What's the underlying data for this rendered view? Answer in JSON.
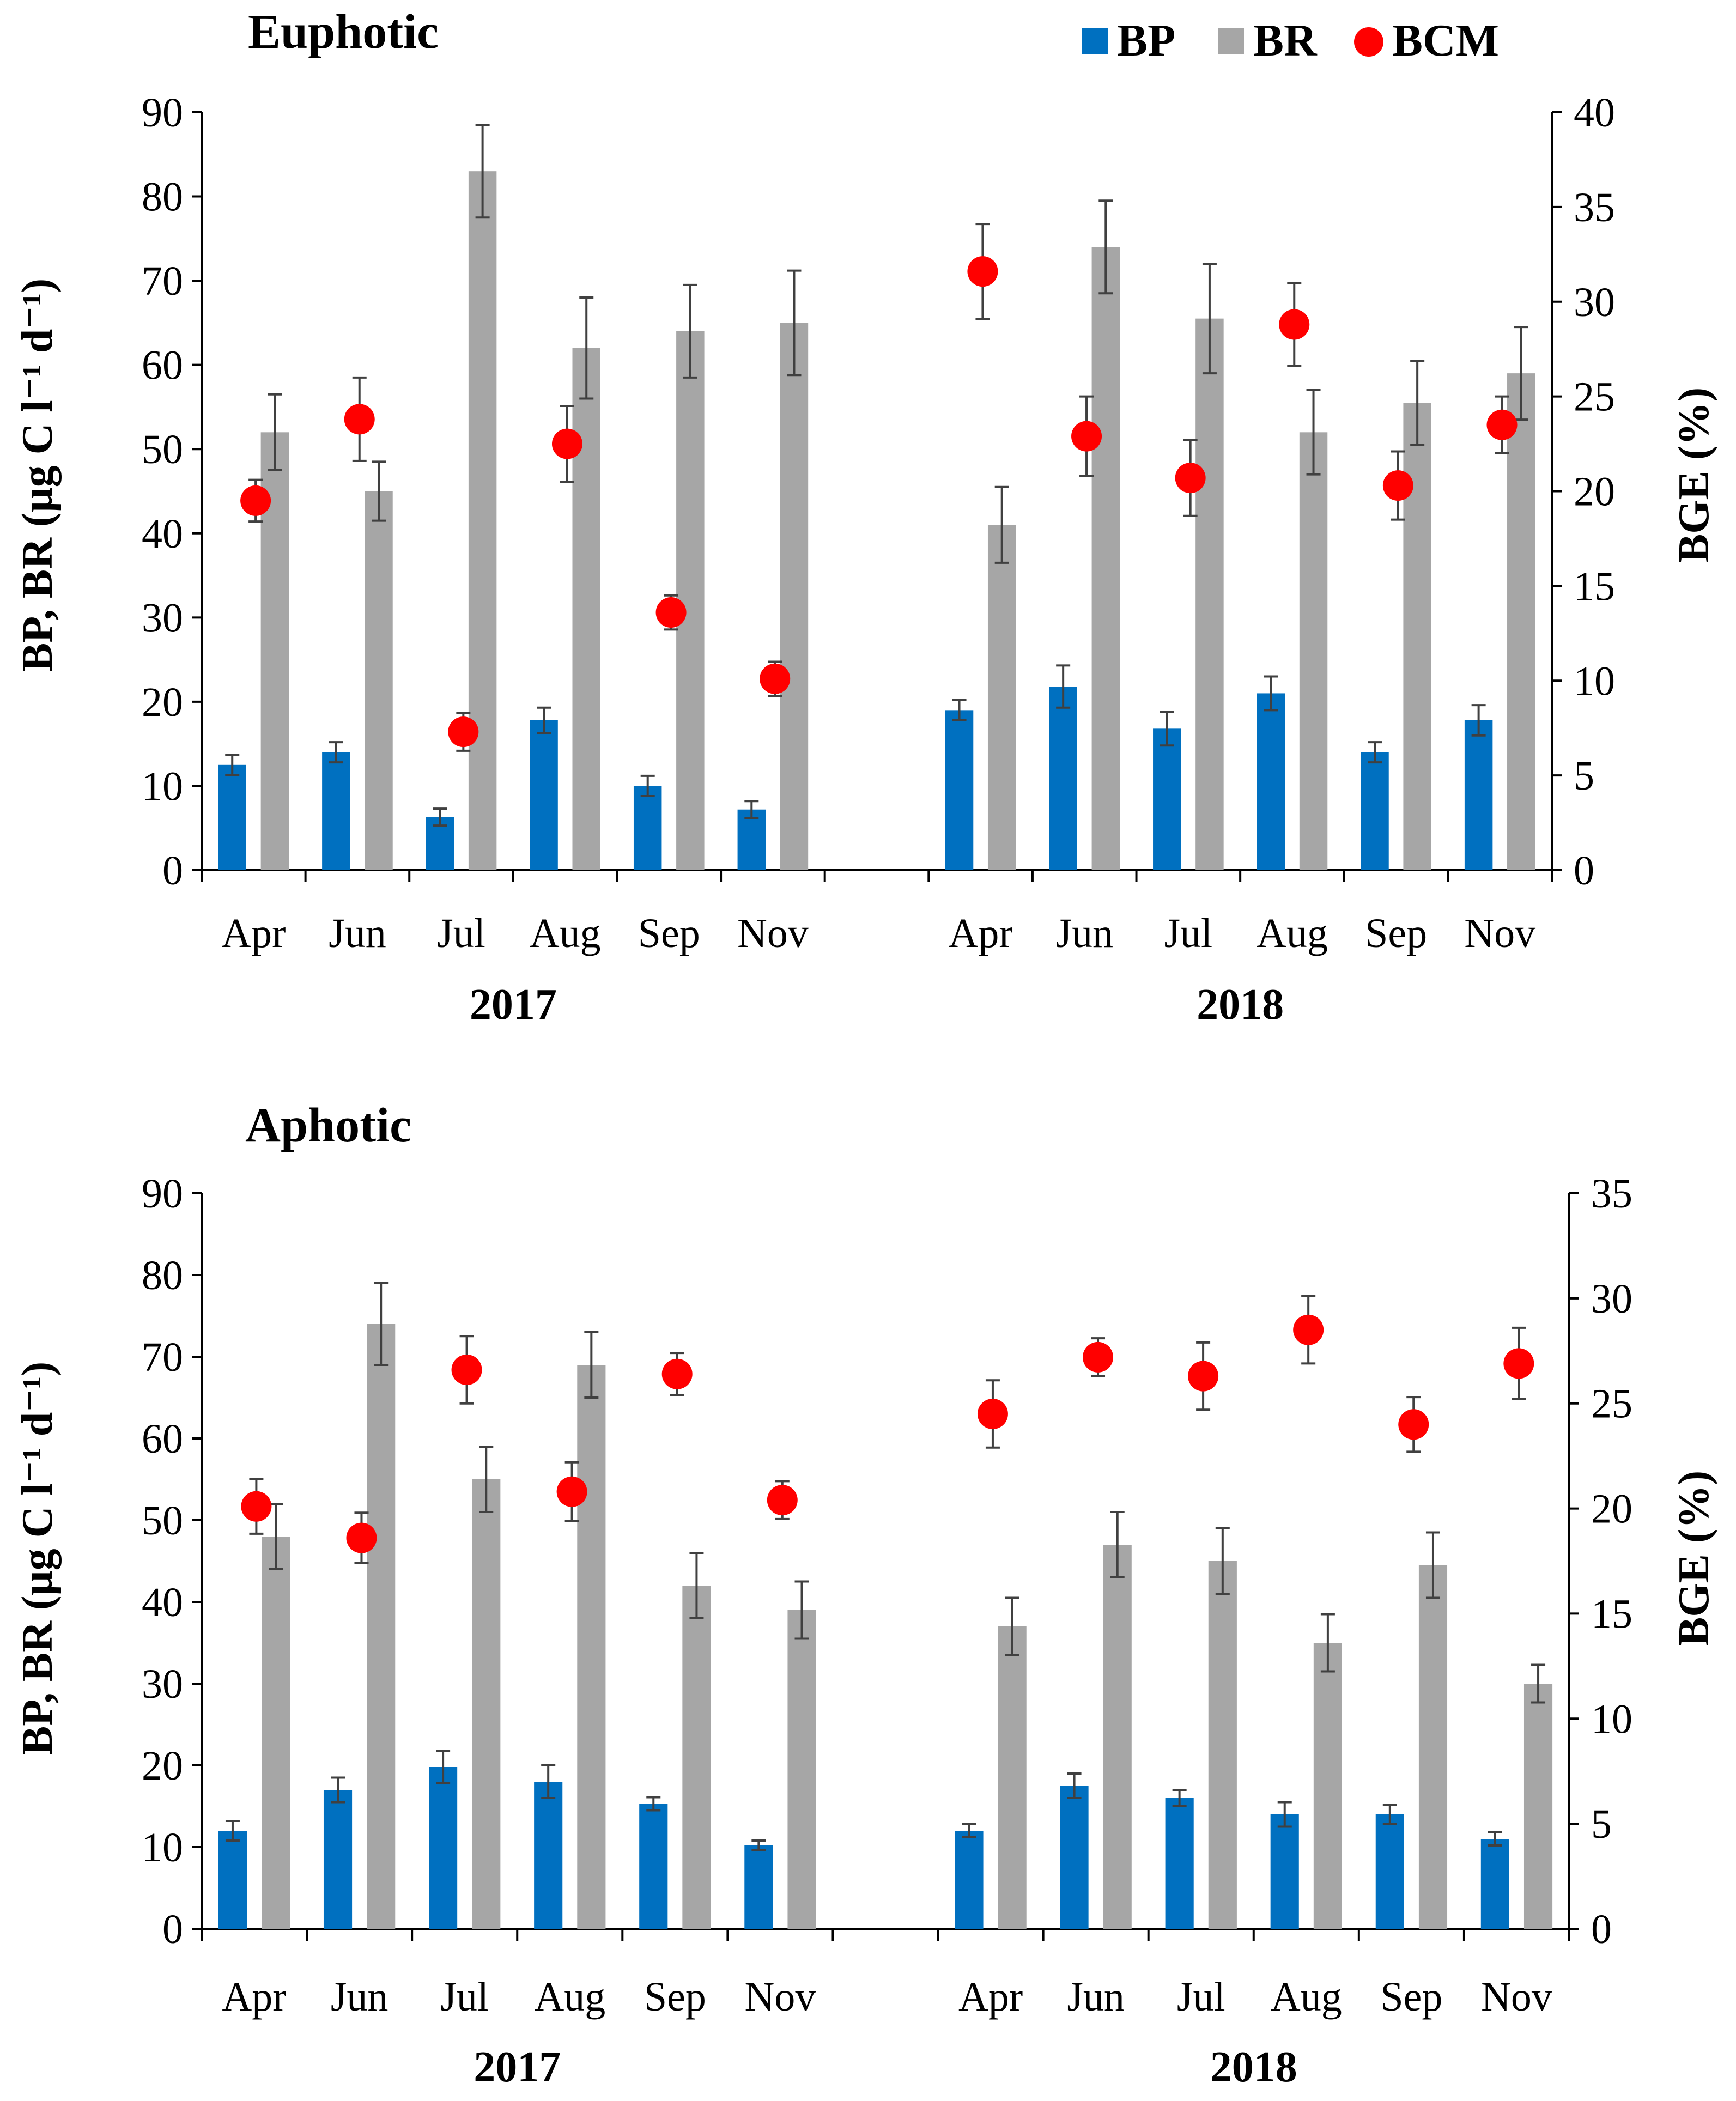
{
  "legend": [
    {
      "label": "BP",
      "color": "#0070C0",
      "marker": "square"
    },
    {
      "label": "BR",
      "color": "#A6A6A6",
      "marker": "square"
    },
    {
      "label": "BCM",
      "color": "#FF0000",
      "marker": "circle"
    }
  ],
  "chart_data": [
    {
      "type": "bar",
      "title": "Euphotic",
      "ylabel": "BP, BR (µg C l⁻¹ d⁻¹)",
      "y2label": "BGE (%)",
      "ylim": [
        0,
        90
      ],
      "yticks": [
        0,
        10,
        20,
        30,
        40,
        50,
        60,
        70,
        80,
        90
      ],
      "y2lim": [
        0,
        40
      ],
      "y2ticks": [
        0,
        5,
        10,
        15,
        20,
        25,
        30,
        35,
        40
      ],
      "groups": [
        {
          "label": "2017",
          "months": [
            "Apr",
            "Jun",
            "Jul",
            "Aug",
            "Sep",
            "Nov"
          ]
        },
        {
          "label": "2018",
          "months": [
            "Apr",
            "Jun",
            "Jul",
            "Aug",
            "Sep",
            "Nov"
          ]
        }
      ],
      "series": [
        {
          "name": "BP",
          "kind": "bar",
          "axis": "left",
          "values": [
            12.5,
            14,
            6.3,
            17.8,
            10,
            7.2,
            19,
            21.8,
            16.8,
            21,
            14,
            17.8
          ],
          "errors": [
            1.2,
            1.2,
            1.0,
            1.5,
            1.2,
            1.0,
            1.2,
            2.5,
            2.0,
            2.0,
            1.2,
            1.8
          ]
        },
        {
          "name": "BR",
          "kind": "bar",
          "axis": "left",
          "values": [
            52,
            45,
            83,
            62,
            64,
            65,
            41,
            74,
            65.5,
            52,
            55.5,
            59
          ],
          "errors": [
            4.5,
            3.5,
            5.5,
            6,
            5.5,
            6.2,
            4.5,
            5.5,
            6.5,
            5,
            5,
            5.5
          ]
        },
        {
          "name": "BCM",
          "kind": "point",
          "axis": "right",
          "values": [
            19.5,
            23.8,
            7.3,
            22.5,
            13.6,
            10.1,
            31.6,
            22.9,
            20.7,
            28.8,
            20.3,
            23.5
          ],
          "errors": [
            1.1,
            2.2,
            1.0,
            2.0,
            0.9,
            0.9,
            2.5,
            2.1,
            2.0,
            2.2,
            1.8,
            1.5
          ]
        }
      ]
    },
    {
      "type": "bar",
      "title": "Aphotic",
      "ylabel": "BP, BR (µg C l⁻¹ d⁻¹)",
      "y2label": "BGE (%)",
      "ylim": [
        0,
        90
      ],
      "yticks": [
        0,
        10,
        20,
        30,
        40,
        50,
        60,
        70,
        80,
        90
      ],
      "y2lim": [
        0,
        35
      ],
      "y2ticks": [
        0,
        5,
        10,
        15,
        20,
        25,
        30,
        35
      ],
      "groups": [
        {
          "label": "2017",
          "months": [
            "Apr",
            "Jun",
            "Jul",
            "Aug",
            "Sep",
            "Nov"
          ]
        },
        {
          "label": "2018",
          "months": [
            "Apr",
            "Jun",
            "Jul",
            "Aug",
            "Sep",
            "Nov"
          ]
        }
      ],
      "series": [
        {
          "name": "BP",
          "kind": "bar",
          "axis": "left",
          "values": [
            12,
            17,
            19.8,
            18,
            15.3,
            10.2,
            12,
            17.5,
            16,
            14,
            14,
            11
          ],
          "errors": [
            1.2,
            1.5,
            2.0,
            2.0,
            0.8,
            0.6,
            0.8,
            1.5,
            1.0,
            1.5,
            1.2,
            0.8
          ]
        },
        {
          "name": "BR",
          "kind": "bar",
          "axis": "left",
          "values": [
            48,
            74,
            55,
            69,
            42,
            39,
            37,
            47,
            45,
            35,
            44.5,
            30
          ],
          "errors": [
            4,
            5,
            4,
            4,
            4,
            3.5,
            3.5,
            4,
            4,
            3.5,
            4,
            2.3
          ]
        },
        {
          "name": "BCM",
          "kind": "point",
          "axis": "right",
          "values": [
            20.1,
            18.6,
            26.6,
            20.8,
            26.4,
            20.4,
            24.5,
            27.2,
            26.3,
            28.5,
            24.0,
            26.9
          ],
          "errors": [
            1.3,
            1.2,
            1.6,
            1.4,
            1.0,
            0.9,
            1.6,
            0.9,
            1.6,
            1.6,
            1.3,
            1.7
          ]
        }
      ]
    }
  ]
}
